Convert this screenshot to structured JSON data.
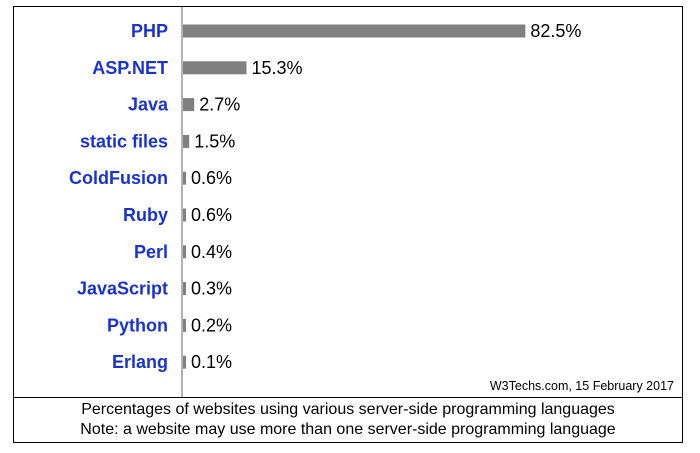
{
  "chart_data": {
    "type": "bar",
    "orientation": "horizontal",
    "categories": [
      "PHP",
      "ASP.NET",
      "Java",
      "static files",
      "ColdFusion",
      "Ruby",
      "Perl",
      "JavaScript",
      "Python",
      "Erlang"
    ],
    "values": [
      82.5,
      15.3,
      2.7,
      1.5,
      0.6,
      0.6,
      0.4,
      0.3,
      0.2,
      0.1
    ],
    "value_labels": [
      "82.5%",
      "15.3%",
      "2.7%",
      "1.5%",
      "0.6%",
      "0.6%",
      "0.4%",
      "0.3%",
      "0.2%",
      "0.1%"
    ],
    "xlim": [
      0,
      100
    ],
    "grid": false,
    "legend": "none",
    "title": "",
    "xlabel": "",
    "ylabel": ""
  },
  "source_note": "W3Techs.com, 15 February 2017",
  "caption": {
    "line1": "Percentages of websites using various server-side programming languages",
    "line2": "Note: a website may use more than one server-side programming language"
  },
  "colors": {
    "bar": "#808080",
    "category_label": "#1a33cc",
    "axis": "#808080"
  }
}
